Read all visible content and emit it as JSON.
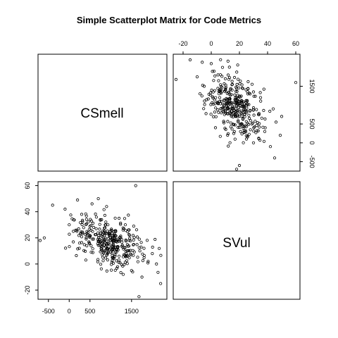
{
  "chart_data": {
    "type": "scatter",
    "title": "Simple Scatterplot Matrix for Code Metrics",
    "variables": [
      "CSmell",
      "SVul"
    ],
    "ranges": {
      "CSmell": [
        -27,
        63
      ],
      "SVul": [
        -750,
        2350
      ]
    },
    "ticks": {
      "CSmell": {
        "values": [
          -20,
          0,
          20,
          40,
          60
        ],
        "labels": [
          "-20",
          "0",
          "20",
          "40",
          "60"
        ]
      },
      "SVul": {
        "values": [
          -500,
          0,
          500,
          1500
        ],
        "labels": [
          "-500",
          "0",
          "500",
          "1500"
        ]
      }
    },
    "grid": false,
    "points": {
      "note": "Each point is [SVul, CSmell]; upper-right panel plots CSmell on x and SVul on y, lower-left plots SVul on x and CSmell on y.",
      "series": [
        [
          1680,
          -25
        ],
        [
          -700,
          18
        ],
        [
          -400,
          45
        ],
        [
          -100,
          42
        ],
        [
          200,
          49
        ],
        [
          2200,
          -15
        ],
        [
          1600,
          60
        ],
        [
          2100,
          0
        ],
        [
          1900,
          2
        ],
        [
          1500,
          -5
        ],
        [
          1300,
          -8
        ],
        [
          1750,
          -10
        ],
        [
          -600,
          20
        ],
        [
          0,
          30
        ],
        [
          300,
          38
        ],
        [
          550,
          46
        ],
        [
          700,
          50
        ],
        [
          400,
          3
        ],
        [
          2000,
          8
        ],
        [
          1800,
          12
        ],
        [
          1450,
          22
        ],
        [
          1200,
          35
        ],
        [
          900,
          44
        ],
        [
          650,
          27
        ],
        [
          850,
          10
        ],
        [
          1050,
          5
        ],
        [
          1550,
          15
        ],
        [
          250,
          16
        ],
        [
          100,
          25
        ],
        [
          1350,
          30
        ]
      ]
    }
  }
}
